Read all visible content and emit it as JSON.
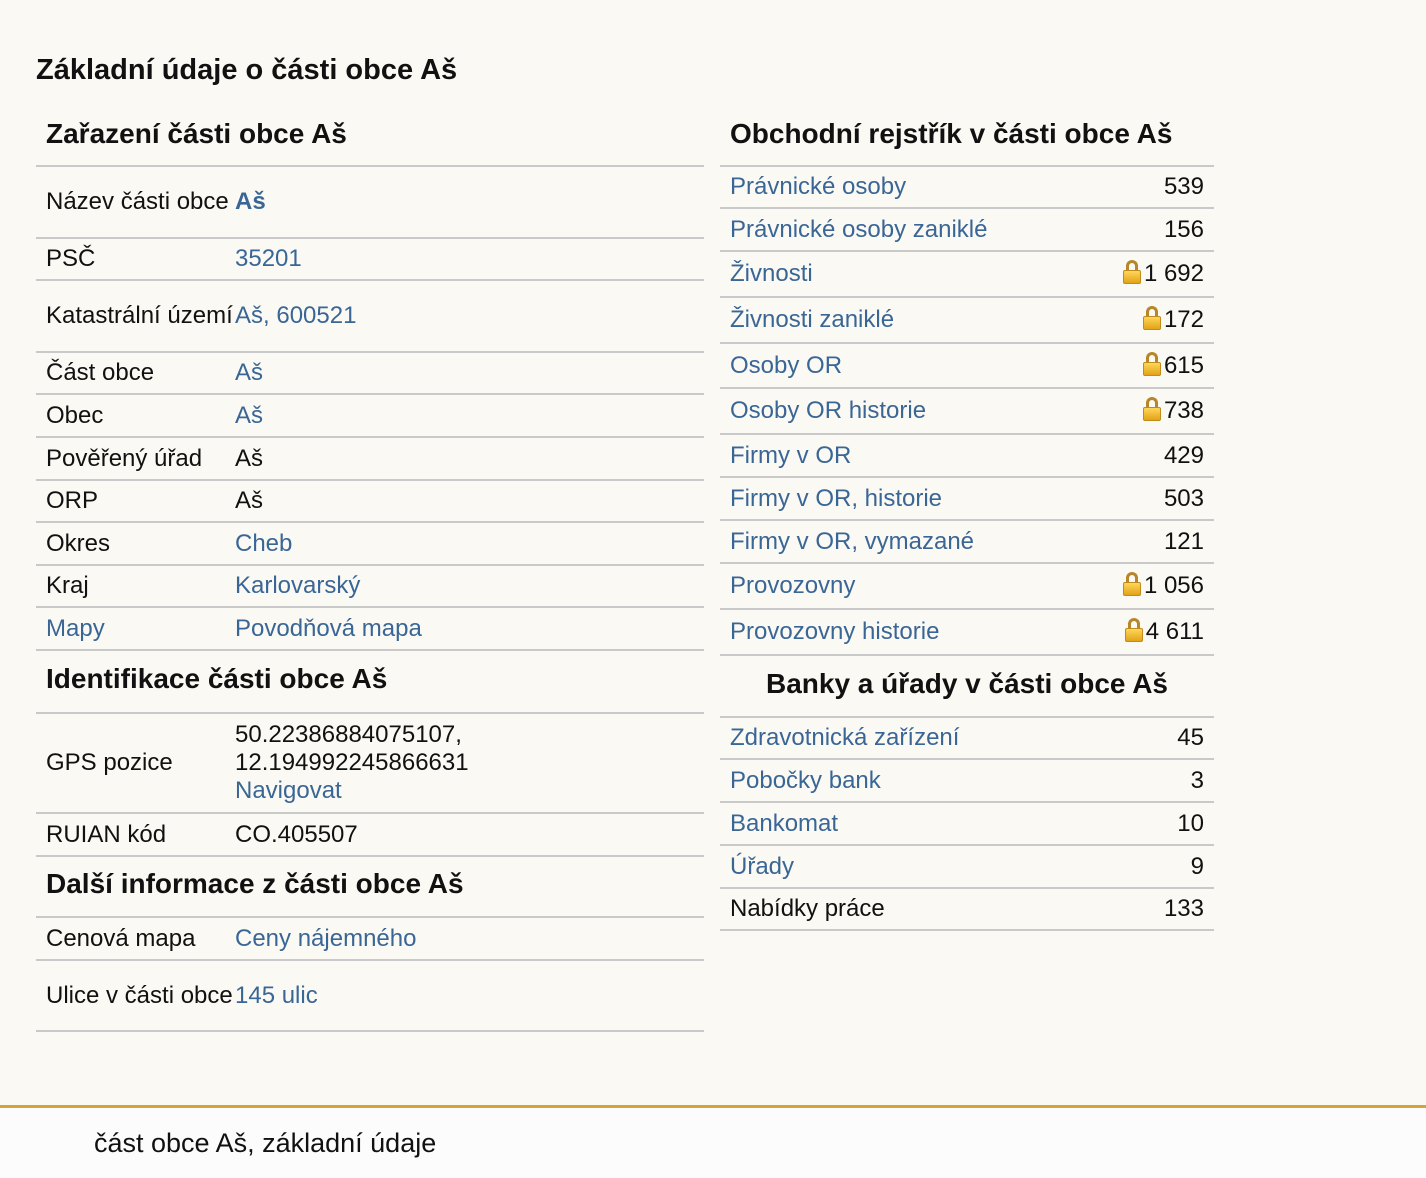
{
  "page_title": "Základní údaje o části obce Aš",
  "zarazeni": {
    "title": "Zařazení části obce Aš",
    "rows": [
      {
        "label": "Název části obce",
        "value": "Aš"
      },
      {
        "label": "PSČ",
        "value": "35201"
      },
      {
        "label": "Katastrální území",
        "value": "Aš, 600521"
      },
      {
        "label": "Část obce",
        "value": "Aš"
      },
      {
        "label": "Obec",
        "value": "Aš"
      },
      {
        "label": "Pověřený úřad",
        "value": "Aš"
      },
      {
        "label": "ORP",
        "value": "Aš"
      },
      {
        "label": "Okres",
        "value": "Cheb"
      },
      {
        "label": "Kraj",
        "value": "Karlovarský"
      },
      {
        "label": "Mapy",
        "value": "Povodňová mapa"
      }
    ]
  },
  "identifikace": {
    "title": "Identifikace části obce Aš",
    "gps_label": "GPS pozice",
    "gps_line1": "50.22386884075107,",
    "gps_line2": "12.194992245866631",
    "gps_navigate": "Navigovat",
    "ruian_label": "RUIAN kód",
    "ruian_value": "CO.405507"
  },
  "dalsi": {
    "title": "Další informace z části obce Aš",
    "rows": [
      {
        "label": "Cenová mapa",
        "value": "Ceny nájemného"
      },
      {
        "label": "Ulice v části obce",
        "value": "145 ulic"
      }
    ]
  },
  "obchodni": {
    "title": "Obchodní rejstřík v části obce Aš",
    "rows": [
      {
        "label": "Právnické osoby",
        "value": "539",
        "locked": false
      },
      {
        "label": "Právnické osoby zaniklé",
        "value": "156",
        "locked": false
      },
      {
        "label": "Živnosti",
        "value": "1 692",
        "locked": true
      },
      {
        "label": "Živnosti zaniklé",
        "value": "172",
        "locked": true
      },
      {
        "label": "Osoby OR",
        "value": "615",
        "locked": true
      },
      {
        "label": "Osoby OR historie",
        "value": "738",
        "locked": true
      },
      {
        "label": "Firmy v OR",
        "value": "429",
        "locked": false
      },
      {
        "label": "Firmy v OR, historie",
        "value": "503",
        "locked": false
      },
      {
        "label": "Firmy v OR, vymazané",
        "value": "121",
        "locked": false
      },
      {
        "label": "Provozovny",
        "value": "1 056",
        "locked": true
      },
      {
        "label": "Provozovny historie",
        "value": "4 611",
        "locked": true
      }
    ]
  },
  "banky": {
    "title": "Banky a úřady v části obce Aš",
    "rows": [
      {
        "label": "Zdravotnická zařízení",
        "value": "45"
      },
      {
        "label": "Pobočky bank",
        "value": "3"
      },
      {
        "label": "Bankomat",
        "value": "10"
      },
      {
        "label": "Úřady",
        "value": "9"
      },
      {
        "label": "Nabídky práce",
        "value": "133"
      }
    ]
  },
  "footer": {
    "text": "část obce Aš, základní údaje"
  },
  "colors": {
    "link": "#3a6696",
    "footer_accent": "#d4a534",
    "background": "#faf9f4"
  }
}
